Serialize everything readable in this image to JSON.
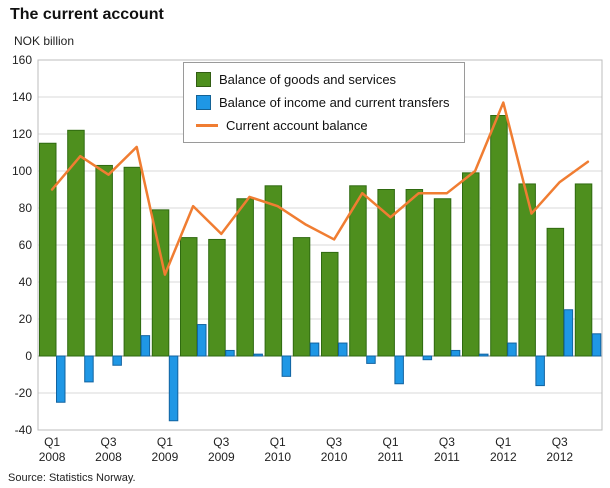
{
  "title": "The current account",
  "unit_label": "NOK billion",
  "source": "Source: Statistics Norway.",
  "chart_data": {
    "type": "bar",
    "title": "The current account",
    "ylabel": "NOK billion",
    "ylim": [
      -40,
      160
    ],
    "ytick_step": 20,
    "grid": true,
    "legend_position": "top-center-inside",
    "categories": [
      "Q1 2008",
      "Q2 2008",
      "Q3 2008",
      "Q4 2008",
      "Q1 2009",
      "Q2 2009",
      "Q3 2009",
      "Q4 2009",
      "Q1 2010",
      "Q2 2010",
      "Q3 2010",
      "Q4 2010",
      "Q1 2011",
      "Q2 2011",
      "Q3 2011",
      "Q4 2011",
      "Q1 2012",
      "Q2 2012",
      "Q3 2012",
      "Q4 2012"
    ],
    "series": [
      {
        "name": "Balance of goods and services",
        "type": "bar",
        "color": "#4e8f1e",
        "stroke": "#2f6a10",
        "values": [
          115,
          122,
          103,
          102,
          79,
          64,
          63,
          85,
          92,
          64,
          56,
          92,
          90,
          90,
          85,
          99,
          130,
          93,
          69,
          93
        ]
      },
      {
        "name": "Balance of income and current transfers",
        "type": "bar",
        "color": "#1f97e5",
        "stroke": "#1263a0",
        "values": [
          -25,
          -14,
          -5,
          11,
          -35,
          17,
          3,
          1,
          -11,
          7,
          7,
          -4,
          -15,
          -2,
          3,
          1,
          7,
          -16,
          25,
          12
        ]
      },
      {
        "name": "Current account balance",
        "type": "line",
        "color": "#f07d32",
        "values": [
          90,
          108,
          98,
          113,
          44,
          81,
          66,
          86,
          81,
          71,
          63,
          88,
          75,
          88,
          88,
          100,
          137,
          77,
          94,
          105
        ]
      }
    ]
  }
}
